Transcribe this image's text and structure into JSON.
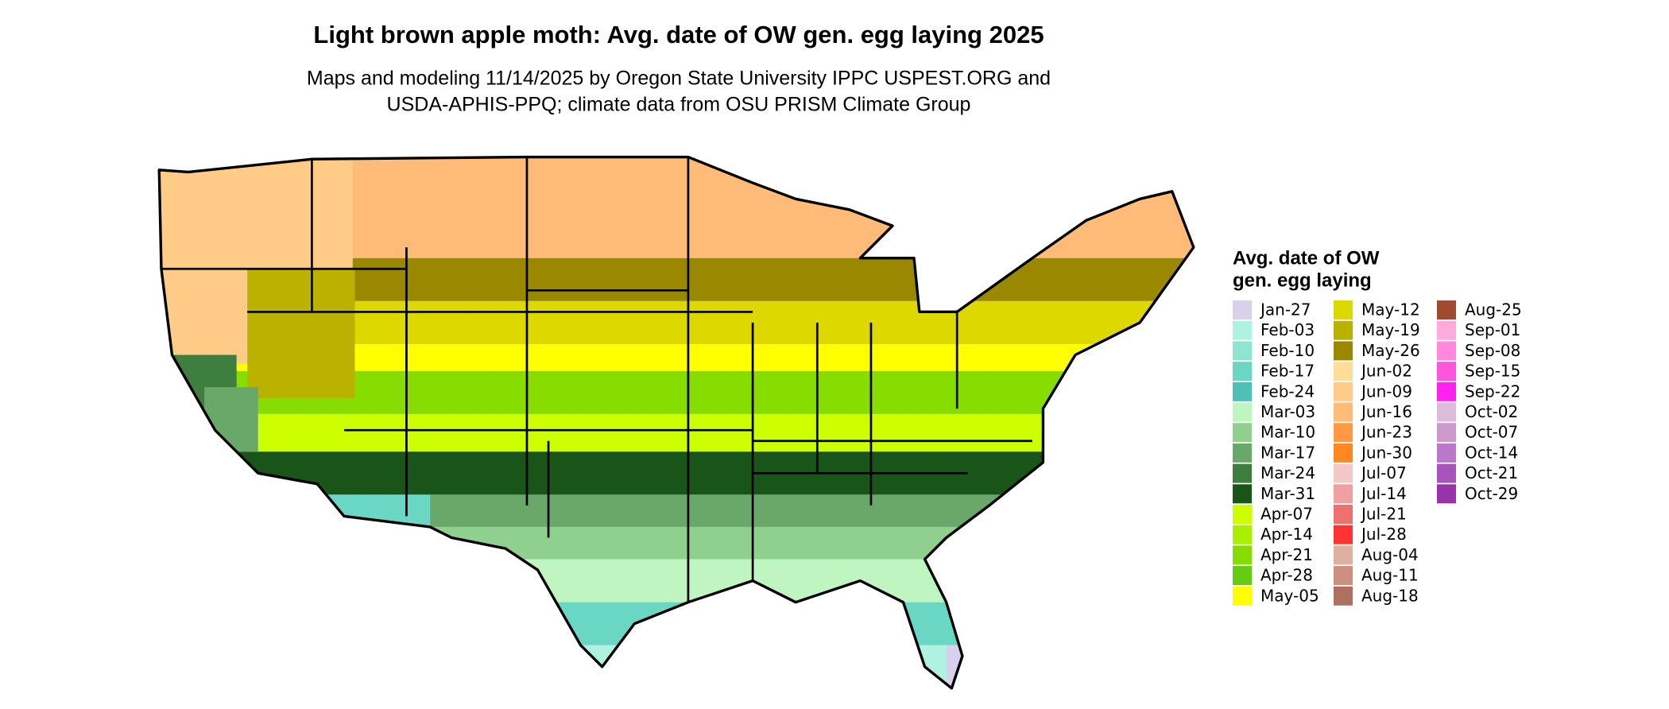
{
  "header": {
    "title": "Light brown apple moth: Avg. date of OW gen. egg laying 2025",
    "subtitle": [
      "Maps and modeling 11/14/2025 by Oregon State University IPPC USPEST.ORG and",
      "USDA-APHIS-PPQ; climate data from OSU PRISM Climate Group"
    ]
  },
  "legend": {
    "title": [
      "Avg. date of OW",
      "gen. egg laying"
    ],
    "entries": [
      {
        "label": "Jan-27",
        "color": "#d8d0ec"
      },
      {
        "label": "Feb-03",
        "color": "#b0f2e2"
      },
      {
        "label": "Feb-10",
        "color": "#8ee6d2"
      },
      {
        "label": "Feb-17",
        "color": "#6ad6c4"
      },
      {
        "label": "Feb-24",
        "color": "#4cc0b4"
      },
      {
        "label": "Mar-03",
        "color": "#bff5c0"
      },
      {
        "label": "Mar-10",
        "color": "#8fd08f"
      },
      {
        "label": "Mar-17",
        "color": "#6aa86a"
      },
      {
        "label": "Mar-24",
        "color": "#3e7e3e"
      },
      {
        "label": "Mar-31",
        "color": "#195419"
      },
      {
        "label": "Apr-07",
        "color": "#ccff00"
      },
      {
        "label": "Apr-14",
        "color": "#aaee00"
      },
      {
        "label": "Apr-21",
        "color": "#88dd00"
      },
      {
        "label": "Apr-28",
        "color": "#66cc11"
      },
      {
        "label": "May-05",
        "color": "#ffff00"
      },
      {
        "label": "May-12",
        "color": "#ddd800"
      },
      {
        "label": "May-19",
        "color": "#bbb200"
      },
      {
        "label": "May-26",
        "color": "#998800"
      },
      {
        "label": "Jun-02",
        "color": "#ffdd99"
      },
      {
        "label": "Jun-09",
        "color": "#ffcc88"
      },
      {
        "label": "Jun-16",
        "color": "#ffbb77"
      },
      {
        "label": "Jun-23",
        "color": "#ff9944"
      },
      {
        "label": "Jun-30",
        "color": "#ff8822"
      },
      {
        "label": "Jul-07",
        "color": "#f5c8c8"
      },
      {
        "label": "Jul-14",
        "color": "#f0a0a0"
      },
      {
        "label": "Jul-21",
        "color": "#f07070"
      },
      {
        "label": "Jul-28",
        "color": "#ff3333"
      },
      {
        "label": "Aug-04",
        "color": "#ddb0a0"
      },
      {
        "label": "Aug-11",
        "color": "#cc9080"
      },
      {
        "label": "Aug-18",
        "color": "#b07060"
      },
      {
        "label": "Aug-25",
        "color": "#a04a30"
      },
      {
        "label": "Sep-01",
        "color": "#ffaadd"
      },
      {
        "label": "Sep-08",
        "color": "#ff88dd"
      },
      {
        "label": "Sep-15",
        "color": "#ff55dd"
      },
      {
        "label": "Sep-22",
        "color": "#ff22ee"
      },
      {
        "label": "Oct-02",
        "color": "#ddbbdd"
      },
      {
        "label": "Oct-07",
        "color": "#cc99cc"
      },
      {
        "label": "Oct-14",
        "color": "#bb77cc"
      },
      {
        "label": "Oct-21",
        "color": "#a855bb"
      },
      {
        "label": "Oct-29",
        "color": "#9933aa"
      }
    ]
  }
}
